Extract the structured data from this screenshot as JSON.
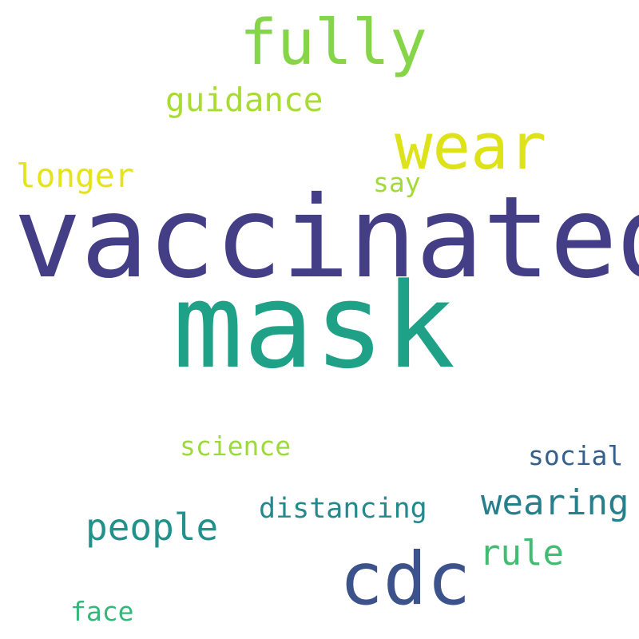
{
  "words": [
    {
      "text": "vaccinated",
      "color": "#433e85"
    },
    {
      "text": "mask",
      "color": "#1fa187"
    },
    {
      "text": "fully",
      "color": "#86d549"
    },
    {
      "text": "wear",
      "color": "#dde318"
    },
    {
      "text": "cdc",
      "color": "#3b528b"
    },
    {
      "text": "guidance",
      "color": "#a8db34"
    },
    {
      "text": "longer",
      "color": "#e5e419"
    },
    {
      "text": "say",
      "color": "#a2da37"
    },
    {
      "text": "science",
      "color": "#9dd93b"
    },
    {
      "text": "social",
      "color": "#355f8d"
    },
    {
      "text": "wearing",
      "color": "#277f8e"
    },
    {
      "text": "distancing",
      "color": "#23898e"
    },
    {
      "text": "people",
      "color": "#21918c"
    },
    {
      "text": "rule",
      "color": "#40bd72"
    },
    {
      "text": "face",
      "color": "#35b779"
    }
  ]
}
